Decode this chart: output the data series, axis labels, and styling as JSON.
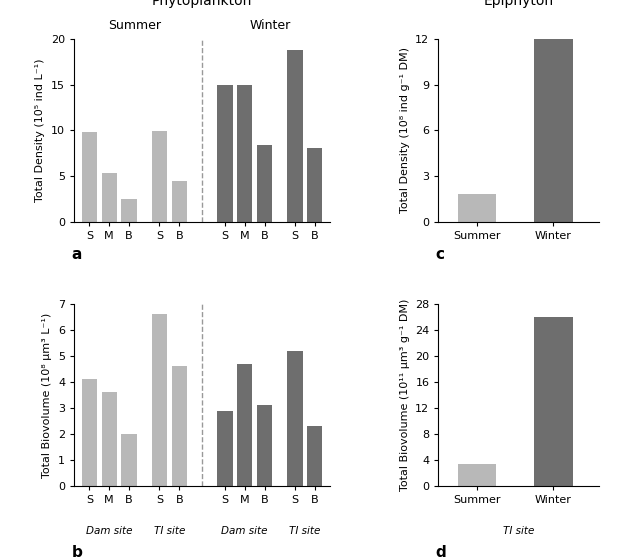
{
  "panel_a": {
    "title": "Phytoplankton",
    "ylabel": "Total Density (10⁵ ind L⁻¹)",
    "ylim": [
      0,
      20
    ],
    "yticks": [
      0,
      5,
      10,
      15,
      20
    ],
    "summer_label": "Summer",
    "winter_label": "Winter",
    "summer_dam_vals": [
      9.8,
      5.3,
      2.5
    ],
    "summer_ti_vals": [
      9.9,
      4.5
    ],
    "winter_dam_vals": [
      15.0,
      15.0,
      8.4
    ],
    "winter_ti_vals": [
      18.8,
      8.1
    ],
    "color_summer": "#b8b8b8",
    "color_winter": "#6e6e6e",
    "label_a": "a"
  },
  "panel_b": {
    "ylabel": "Total Biovolume (10⁸ μm³ L⁻¹)",
    "ylim": [
      0,
      7
    ],
    "yticks": [
      0,
      1,
      2,
      3,
      4,
      5,
      6,
      7
    ],
    "summer_dam_vals": [
      4.1,
      3.6,
      2.0
    ],
    "summer_ti_vals": [
      6.6,
      4.6
    ],
    "winter_dam_vals": [
      2.9,
      4.7,
      3.1
    ],
    "winter_ti_vals": [
      5.2,
      2.3
    ],
    "color_summer": "#b8b8b8",
    "color_winter": "#6e6e6e",
    "label_b": "b",
    "site_labels": [
      "Dam site",
      "TI site",
      "Dam site",
      "TI site"
    ]
  },
  "panel_c": {
    "title": "Epiphyton",
    "ylabel": "Total Density (10⁸ ind g⁻¹ DM)",
    "ylim": [
      0,
      12
    ],
    "yticks": [
      0,
      3,
      6,
      9,
      12
    ],
    "labels": [
      "Summer",
      "Winter"
    ],
    "values": [
      1.8,
      12.0
    ],
    "color_summer": "#b8b8b8",
    "color_winter": "#6e6e6e",
    "label_c": "c"
  },
  "panel_d": {
    "ylabel": "Total Biovolume (10¹¹ μm³ g⁻¹ DM)",
    "ylim": [
      0,
      28
    ],
    "yticks": [
      0,
      4,
      8,
      12,
      16,
      20,
      24,
      28
    ],
    "labels": [
      "Summer",
      "Winter"
    ],
    "values": [
      3.5,
      26.0
    ],
    "color_summer": "#b8b8b8",
    "color_winter": "#6e6e6e",
    "label_d": "d",
    "site_label": "TI site"
  }
}
